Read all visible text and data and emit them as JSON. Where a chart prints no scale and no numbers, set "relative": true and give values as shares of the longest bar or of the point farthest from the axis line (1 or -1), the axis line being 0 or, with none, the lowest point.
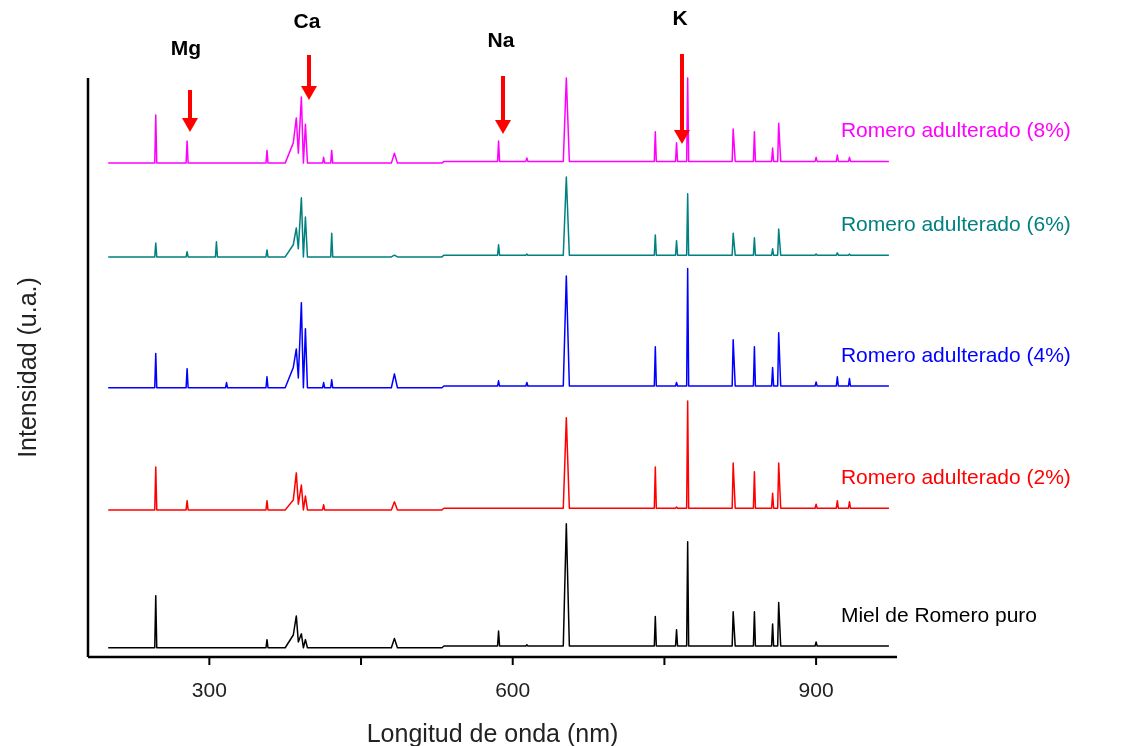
{
  "chart_data": {
    "type": "line",
    "relative": true,
    "xlabel": "Longitud de onda (nm)",
    "ylabel": "Intensidad (u.a.)",
    "xlim": [
      180,
      980
    ],
    "xticks": [
      300,
      {
        "value": 450,
        "label": null
      },
      600,
      {
        "value": 750,
        "label": null
      },
      900
    ],
    "x": [
      200,
      246,
      247,
      248,
      277,
      278,
      279,
      306,
      307,
      308,
      316,
      317,
      318,
      356,
      357,
      358,
      375,
      383,
      386,
      388,
      391,
      393,
      395,
      397,
      412,
      413,
      414,
      420,
      421,
      422,
      480,
      483,
      486,
      530,
      532,
      585,
      586,
      587,
      613,
      614,
      615,
      650,
      653,
      656,
      740,
      741,
      742,
      761,
      762,
      763,
      772,
      773,
      774,
      817,
      818,
      820,
      838,
      839,
      840,
      856,
      857,
      858,
      862,
      863,
      865,
      899,
      900,
      901,
      920,
      921,
      922,
      932,
      933,
      934,
      972
    ],
    "series": [
      {
        "name": "Romero adulterado (8%)",
        "color": "#ff00ff",
        "values": [
          0.853,
          0.853,
          0.936,
          0.853,
          0.853,
          0.891,
          0.853,
          0.853,
          0.853,
          0.853,
          0.853,
          0.853,
          0.853,
          0.853,
          0.875,
          0.853,
          0.853,
          0.888,
          0.931,
          0.87,
          0.967,
          0.853,
          0.92,
          0.853,
          0.853,
          0.863,
          0.853,
          0.853,
          0.875,
          0.853,
          0.853,
          0.87,
          0.853,
          0.853,
          0.856,
          0.856,
          0.891,
          0.856,
          0.856,
          0.862,
          0.856,
          0.856,
          1.0,
          0.856,
          0.856,
          0.907,
          0.856,
          0.856,
          0.888,
          0.856,
          0.856,
          1.0,
          0.856,
          0.856,
          0.912,
          0.856,
          0.856,
          0.907,
          0.856,
          0.856,
          0.879,
          0.856,
          0.856,
          0.922,
          0.856,
          0.856,
          0.863,
          0.856,
          0.856,
          0.867,
          0.856,
          0.856,
          0.863,
          0.856,
          0.856
        ]
      },
      {
        "name": "Romero adulterado (6%)",
        "color": "#008080",
        "values": [
          0.691,
          0.691,
          0.715,
          0.691,
          0.691,
          0.7,
          0.691,
          0.691,
          0.717,
          0.691,
          0.691,
          0.691,
          0.691,
          0.691,
          0.703,
          0.691,
          0.691,
          0.712,
          0.741,
          0.705,
          0.793,
          0.691,
          0.76,
          0.691,
          0.691,
          0.691,
          0.691,
          0.691,
          0.732,
          0.691,
          0.691,
          0.694,
          0.691,
          0.691,
          0.694,
          0.694,
          0.712,
          0.694,
          0.694,
          0.696,
          0.694,
          0.694,
          0.829,
          0.694,
          0.694,
          0.729,
          0.694,
          0.694,
          0.719,
          0.694,
          0.694,
          0.8,
          0.694,
          0.694,
          0.732,
          0.694,
          0.694,
          0.724,
          0.694,
          0.694,
          0.705,
          0.694,
          0.694,
          0.739,
          0.694,
          0.694,
          0.696,
          0.694,
          0.694,
          0.698,
          0.694,
          0.694,
          0.696,
          0.694,
          0.694
        ]
      },
      {
        "name": "Romero adulterado (4%)",
        "color": "#0000ff",
        "values": [
          0.465,
          0.465,
          0.524,
          0.465,
          0.465,
          0.498,
          0.465,
          0.465,
          0.465,
          0.465,
          0.465,
          0.474,
          0.465,
          0.465,
          0.484,
          0.465,
          0.465,
          0.5,
          0.532,
          0.482,
          0.612,
          0.465,
          0.567,
          0.465,
          0.465,
          0.474,
          0.465,
          0.465,
          0.479,
          0.465,
          0.465,
          0.489,
          0.465,
          0.465,
          0.468,
          0.468,
          0.477,
          0.468,
          0.468,
          0.474,
          0.468,
          0.468,
          0.658,
          0.468,
          0.468,
          0.536,
          0.468,
          0.468,
          0.474,
          0.468,
          0.468,
          0.671,
          0.468,
          0.468,
          0.548,
          0.468,
          0.468,
          0.536,
          0.468,
          0.468,
          0.5,
          0.468,
          0.468,
          0.56,
          0.468,
          0.468,
          0.475,
          0.468,
          0.468,
          0.484,
          0.468,
          0.468,
          0.481,
          0.468,
          0.468
        ]
      },
      {
        "name": "Romero adulterado (2%)",
        "color": "#ff0000",
        "values": [
          0.254,
          0.254,
          0.328,
          0.254,
          0.254,
          0.27,
          0.254,
          0.254,
          0.254,
          0.254,
          0.254,
          0.254,
          0.254,
          0.254,
          0.27,
          0.254,
          0.254,
          0.271,
          0.318,
          0.264,
          0.297,
          0.254,
          0.278,
          0.254,
          0.254,
          0.263,
          0.254,
          0.254,
          0.254,
          0.254,
          0.254,
          0.268,
          0.254,
          0.254,
          0.257,
          0.257,
          0.257,
          0.257,
          0.257,
          0.257,
          0.257,
          0.257,
          0.413,
          0.257,
          0.257,
          0.328,
          0.257,
          0.257,
          0.259,
          0.257,
          0.257,
          0.442,
          0.257,
          0.257,
          0.335,
          0.257,
          0.257,
          0.32,
          0.257,
          0.257,
          0.283,
          0.257,
          0.257,
          0.335,
          0.257,
          0.257,
          0.264,
          0.257,
          0.257,
          0.27,
          0.257,
          0.257,
          0.268,
          0.257,
          0.257
        ]
      },
      {
        "name": "Miel de Romero puro",
        "color": "#000000",
        "values": [
          0.016,
          0.016,
          0.106,
          0.016,
          0.016,
          0.016,
          0.016,
          0.016,
          0.016,
          0.016,
          0.016,
          0.016,
          0.016,
          0.016,
          0.03,
          0.016,
          0.016,
          0.038,
          0.071,
          0.026,
          0.04,
          0.016,
          0.03,
          0.016,
          0.016,
          0.016,
          0.016,
          0.016,
          0.016,
          0.016,
          0.016,
          0.032,
          0.016,
          0.016,
          0.019,
          0.019,
          0.045,
          0.019,
          0.019,
          0.021,
          0.019,
          0.019,
          0.23,
          0.019,
          0.019,
          0.07,
          0.019,
          0.019,
          0.047,
          0.019,
          0.019,
          0.199,
          0.019,
          0.019,
          0.078,
          0.019,
          0.019,
          0.078,
          0.019,
          0.019,
          0.057,
          0.019,
          0.019,
          0.094,
          0.019,
          0.019,
          0.026,
          0.019,
          0.019,
          0.019,
          0.019,
          0.019,
          0.019,
          0.019,
          0.019
        ]
      }
    ],
    "annotations": [
      "Mg",
      "Ca",
      "Na",
      "K"
    ]
  }
}
